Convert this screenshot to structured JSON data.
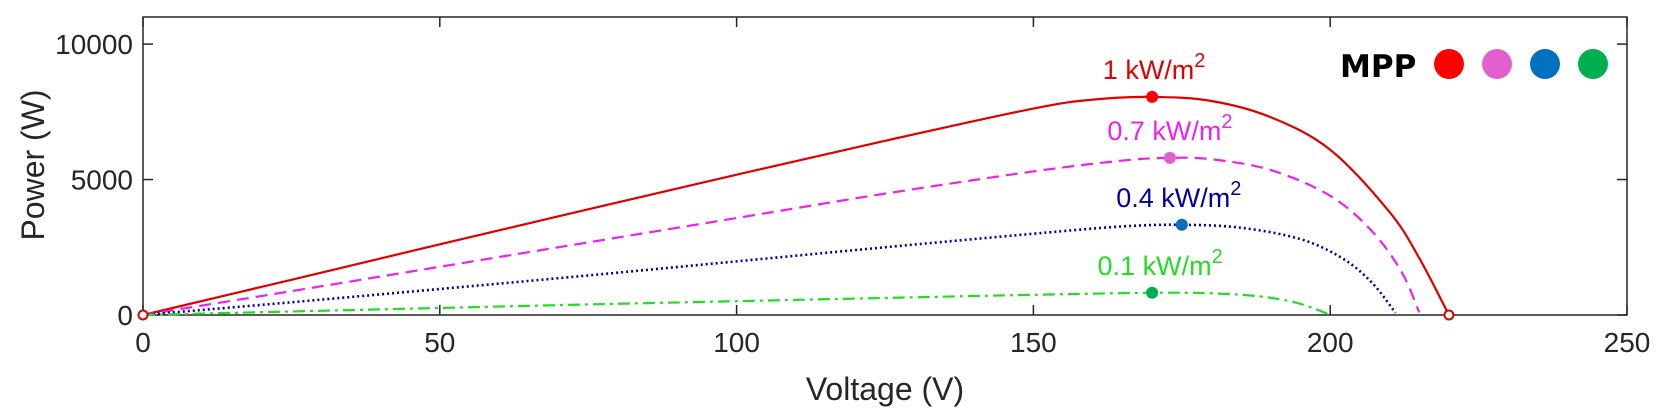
{
  "chart_data": {
    "type": "line",
    "title": "",
    "xlabel": "Voltage (V)",
    "ylabel": "Power (W)",
    "xlim": [
      0,
      250
    ],
    "ylim": [
      0,
      11000
    ],
    "xticks": [
      0,
      50,
      100,
      150,
      200,
      250
    ],
    "yticks": [
      0,
      5000,
      10000
    ],
    "grid": false,
    "legend": {
      "placement": "top-right",
      "label": "MPP",
      "colors": [
        "#ff0000",
        "#e060d0",
        "#0070c0",
        "#00b050"
      ]
    },
    "series": [
      {
        "label": "1 kW/m",
        "label_superscript": "2",
        "color": "#e00000",
        "dash": "solid",
        "mpp": [
          170,
          8050
        ],
        "points": [
          [
            0,
            0
          ],
          [
            25,
            1300
          ],
          [
            50,
            2610
          ],
          [
            75,
            3900
          ],
          [
            100,
            5180
          ],
          [
            125,
            6430
          ],
          [
            150,
            7620
          ],
          [
            160,
            7950
          ],
          [
            170,
            8050
          ],
          [
            180,
            7900
          ],
          [
            190,
            7300
          ],
          [
            200,
            6100
          ],
          [
            210,
            3800
          ],
          [
            215,
            2100
          ],
          [
            220,
            0
          ]
        ]
      },
      {
        "label": "0.7 kW/m",
        "label_superscript": "2",
        "color": "#ee22ee",
        "dash": "dashed",
        "mpp": [
          173,
          5800
        ],
        "points": [
          [
            0,
            0
          ],
          [
            25,
            880
          ],
          [
            50,
            1780
          ],
          [
            75,
            2680
          ],
          [
            100,
            3580
          ],
          [
            125,
            4480
          ],
          [
            150,
            5300
          ],
          [
            165,
            5700
          ],
          [
            173,
            5800
          ],
          [
            180,
            5750
          ],
          [
            190,
            5350
          ],
          [
            200,
            4400
          ],
          [
            207,
            3100
          ],
          [
            212,
            1600
          ],
          [
            215,
            100
          ]
        ]
      },
      {
        "label": "0.4 kW/m",
        "label_superscript": "2",
        "color": "#0000a0",
        "dash": "dotted",
        "mpp": [
          175,
          3330
        ],
        "points": [
          [
            0,
            0
          ],
          [
            25,
            470
          ],
          [
            50,
            960
          ],
          [
            75,
            1460
          ],
          [
            100,
            1980
          ],
          [
            125,
            2500
          ],
          [
            150,
            3000
          ],
          [
            165,
            3270
          ],
          [
            175,
            3330
          ],
          [
            185,
            3220
          ],
          [
            195,
            2800
          ],
          [
            202,
            2100
          ],
          [
            207,
            1200
          ],
          [
            211,
            80
          ]
        ]
      },
      {
        "label": "0.1 kW/m",
        "label_superscript": "2",
        "color": "#22dd22",
        "dash": "dashdot",
        "mpp": [
          170,
          820
        ],
        "points": [
          [
            0,
            0
          ],
          [
            25,
            130
          ],
          [
            50,
            260
          ],
          [
            75,
            390
          ],
          [
            100,
            510
          ],
          [
            125,
            630
          ],
          [
            150,
            745
          ],
          [
            170,
            820
          ],
          [
            180,
            800
          ],
          [
            188,
            690
          ],
          [
            194,
            470
          ],
          [
            198,
            180
          ],
          [
            200,
            0
          ]
        ]
      }
    ],
    "hollow_markers": [
      [
        0,
        0
      ],
      [
        220,
        0
      ]
    ]
  }
}
